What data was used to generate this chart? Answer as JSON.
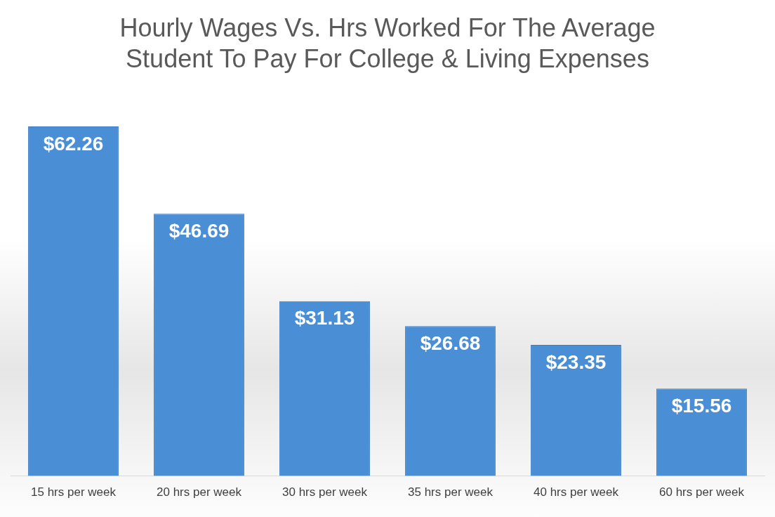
{
  "chart_data": {
    "type": "bar",
    "title": "Hourly Wages Vs. Hrs Worked For The Average Student To Pay For College & Living Expenses",
    "categories": [
      "15 hrs per week",
      "20 hrs per week",
      "30 hrs per week",
      "35 hrs per week",
      "40 hrs per week",
      "60 hrs per week"
    ],
    "values": [
      62.26,
      46.69,
      31.13,
      26.68,
      23.35,
      15.56
    ],
    "value_labels": [
      "$62.26",
      "$46.69",
      "$31.13",
      "$26.68",
      "$23.35",
      "$15.56"
    ],
    "color": "#4a8fd6",
    "grid": false,
    "legend": false
  }
}
